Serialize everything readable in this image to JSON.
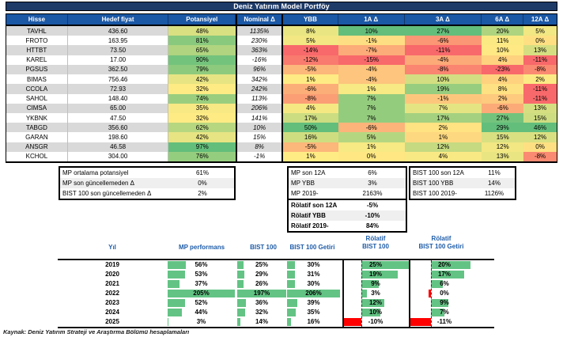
{
  "title": "Deniz Yatırım Model Portföy",
  "main_table": {
    "headers": [
      "Hisse",
      "Hedef fiyat",
      "Potansiyel",
      "Nominal Δ",
      "YBB",
      "1A Δ",
      "3A Δ",
      "6A Δ",
      "12A Δ"
    ],
    "rows": [
      {
        "hisse": "TAVHL",
        "hedef": "436.60",
        "pot": 48,
        "nominal": 1135,
        "ybb": 8,
        "a1": 10,
        "a3": 27,
        "a6": 20,
        "a12": 5
      },
      {
        "hisse": "FROTO",
        "hedef": "163.95",
        "pot": 81,
        "nominal": 230,
        "ybb": 5,
        "a1": -1,
        "a3": -6,
        "a6": 11,
        "a12": 0
      },
      {
        "hisse": "HTTBT",
        "hedef": "73.50",
        "pot": 65,
        "nominal": 363,
        "ybb": -14,
        "a1": -7,
        "a3": -11,
        "a6": 10,
        "a12": 13
      },
      {
        "hisse": "KAREL",
        "hedef": "17.00",
        "pot": 90,
        "nominal": -16,
        "ybb": -12,
        "a1": -15,
        "a3": -4,
        "a6": 4,
        "a12": -11
      },
      {
        "hisse": "PGSUS",
        "hedef": "362.50",
        "pot": 79,
        "nominal": 96,
        "ybb": -5,
        "a1": -4,
        "a3": -8,
        "a6": -23,
        "a12": -8
      },
      {
        "hisse": "BIMAS",
        "hedef": "756.46",
        "pot": 42,
        "nominal": 342,
        "ybb": 1,
        "a1": -4,
        "a3": 10,
        "a6": 4,
        "a12": 2
      },
      {
        "hisse": "CCOLA",
        "hedef": "72.93",
        "pot": 32,
        "nominal": 242,
        "ybb": -6,
        "a1": 1,
        "a3": 19,
        "a6": 8,
        "a12": -11
      },
      {
        "hisse": "SAHOL",
        "hedef": "148.40",
        "pot": 74,
        "nominal": 113,
        "ybb": -8,
        "a1": 7,
        "a3": -1,
        "a6": 2,
        "a12": -11
      },
      {
        "hisse": "CIMSA",
        "hedef": "65.00",
        "pot": 35,
        "nominal": 206,
        "ybb": 4,
        "a1": 7,
        "a3": 7,
        "a6": -6,
        "a12": 13
      },
      {
        "hisse": "YKBNK",
        "hedef": "47.50",
        "pot": 32,
        "nominal": 141,
        "ybb": 17,
        "a1": 7,
        "a3": 17,
        "a6": 27,
        "a12": 15
      },
      {
        "hisse": "TABGD",
        "hedef": "356.60",
        "pot": 62,
        "nominal": 10,
        "ybb": 50,
        "a1": -6,
        "a3": 2,
        "a6": 29,
        "a12": 46
      },
      {
        "hisse": "GARAN",
        "hedef": "198.60",
        "pot": 42,
        "nominal": 15,
        "ybb": 16,
        "a1": 5,
        "a3": 1,
        "a6": 15,
        "a12": 12
      },
      {
        "hisse": "ANSGR",
        "hedef": "46.58",
        "pot": 97,
        "nominal": 8,
        "ybb": -5,
        "a1": 1,
        "a3": 12,
        "a6": 12,
        "a12": 0
      },
      {
        "hisse": "KCHOL",
        "hedef": "304.00",
        "pot": 76,
        "nominal": -1,
        "ybb": 1,
        "a1": 0,
        "a3": 4,
        "a6": 13,
        "a12": -8
      }
    ]
  },
  "summary_boxes": {
    "left": [
      {
        "label": "MP ortalama potansiyel",
        "value": "61%"
      },
      {
        "label": "MP son güncellemeden Δ",
        "value": "0%"
      },
      {
        "label": "BIST 100 son güncellemeden Δ",
        "value": "2%"
      }
    ],
    "mid": [
      {
        "label": "MP son 12A",
        "value": "6%"
      },
      {
        "label": "MP YBB",
        "value": "3%"
      },
      {
        "label": "MP 2019-",
        "value": "2163%"
      }
    ],
    "relatif": [
      {
        "label": "Rölatif son 12A",
        "value": "-5%"
      },
      {
        "label": "Rölatif YBB",
        "value": "-10%"
      },
      {
        "label": "Rölatif 2019-",
        "value": "84%"
      }
    ],
    "right": [
      {
        "label": "BIST 100 son 12A",
        "value": "11%"
      },
      {
        "label": "BIST 100 YBB",
        "value": "14%"
      },
      {
        "label": "BIST 100 2019-",
        "value": "1126%"
      }
    ]
  },
  "chart_data": {
    "type": "table",
    "title": "Yıllık performans (databar tablosu)",
    "columns": [
      "Yıl",
      "MP performans",
      "BIST 100",
      "BIST 100 Getiri",
      "Rölatif BIST 100",
      "Rölatif BIST 100 Getiri"
    ],
    "years": [
      "2019",
      "2020",
      "2021",
      "2022",
      "2023",
      "2024",
      "2025"
    ],
    "series": [
      {
        "name": "MP performans",
        "values": [
          56,
          53,
          37,
          205,
          52,
          44,
          3
        ]
      },
      {
        "name": "BIST 100",
        "values": [
          25,
          29,
          26,
          197,
          36,
          32,
          14
        ]
      },
      {
        "name": "BIST 100 Getiri",
        "values": [
          30,
          31,
          30,
          206,
          39,
          35,
          16
        ]
      },
      {
        "name": "Rölatif BIST 100",
        "values": [
          25,
          19,
          9,
          3,
          12,
          10,
          -10
        ]
      },
      {
        "name": "Rölatif BIST 100 Getiri",
        "values": [
          20,
          17,
          6,
          0,
          9,
          7,
          -11
        ]
      }
    ]
  },
  "footer": {
    "text": "Kaynak: Deniz Yatırım Strateji ve Araştırma Bölümü hesaplamaları"
  },
  "colors": {
    "title_bg": "#1e3a67",
    "header_bg": "#1a57a5",
    "row_stripe": "#d9d9d9",
    "box_stripe": "#efefef",
    "heat_red": "#f8696b",
    "heat_yellow": "#ffeb84",
    "heat_green": "#63be7b",
    "databar_green": "#63c384",
    "databar_red": "#ff0000",
    "chart_header_blue": "#1e5ca8"
  }
}
